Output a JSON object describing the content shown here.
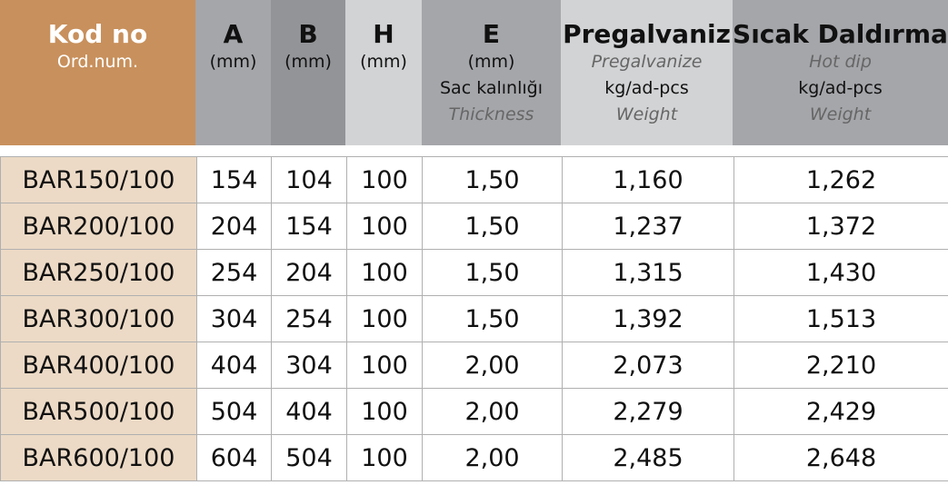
{
  "colors": {
    "code_header": "#c8905c",
    "code_cell": "#ecdac6",
    "gray_mid": "#a5a6aa",
    "gray_dark": "#939498",
    "gray_light": "#d2d3d5"
  },
  "headers": [
    {
      "title": "Kod no",
      "lines": [
        "Ord.num."
      ],
      "italic": []
    },
    {
      "title": "A",
      "lines": [
        "(mm)"
      ],
      "italic": []
    },
    {
      "title": "B",
      "lines": [
        "(mm)"
      ],
      "italic": []
    },
    {
      "title": "H",
      "lines": [
        "(mm)"
      ],
      "italic": []
    },
    {
      "title": "E",
      "lines": [
        "(mm)",
        "Sac kalınlığı"
      ],
      "italic": [
        "Thickness"
      ]
    },
    {
      "title": "Pregalvaniz",
      "sub_italic": "Pregalvanize",
      "unit": "kg/ad-pcs",
      "italic2": "Weight"
    },
    {
      "title": "Sıcak Daldırma",
      "sub_italic": "Hot dip",
      "unit": "kg/ad-pcs",
      "italic2": "Weight"
    }
  ],
  "rows": [
    [
      "BAR150/100",
      "154",
      "104",
      "100",
      "1,50",
      "1,160",
      "1,262"
    ],
    [
      "BAR200/100",
      "204",
      "154",
      "100",
      "1,50",
      "1,237",
      "1,372"
    ],
    [
      "BAR250/100",
      "254",
      "204",
      "100",
      "1,50",
      "1,315",
      "1,430"
    ],
    [
      "BAR300/100",
      "304",
      "254",
      "100",
      "1,50",
      "1,392",
      "1,513"
    ],
    [
      "BAR400/100",
      "404",
      "304",
      "100",
      "2,00",
      "2,073",
      "2,210"
    ],
    [
      "BAR500/100",
      "504",
      "404",
      "100",
      "2,00",
      "2,279",
      "2,429"
    ],
    [
      "BAR600/100",
      "604",
      "504",
      "100",
      "2,00",
      "2,485",
      "2,648"
    ]
  ]
}
